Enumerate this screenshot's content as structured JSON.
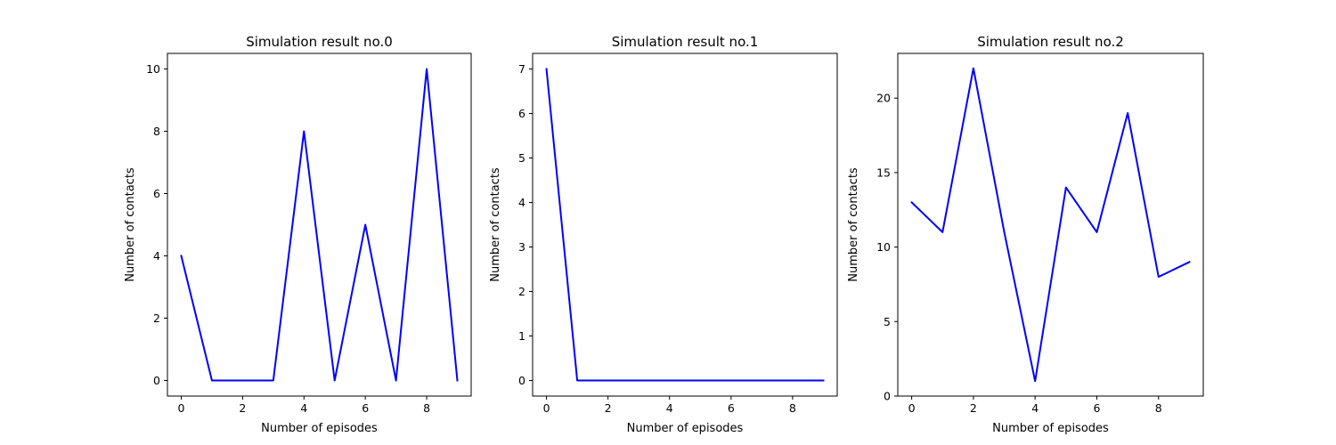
{
  "chart_data": [
    {
      "type": "line",
      "title": "Simulation result no.0",
      "xlabel": "Number of episodes",
      "ylabel": "Number of contacts",
      "x": [
        0,
        1,
        2,
        3,
        4,
        5,
        6,
        7,
        8,
        9
      ],
      "series": [
        {
          "values": [
            4,
            0,
            0,
            0,
            8,
            0,
            5,
            0,
            10,
            0
          ],
          "color": "#0000ff"
        }
      ],
      "xlim": [
        -0.45,
        9.45
      ],
      "ylim": [
        -0.5,
        10.5
      ],
      "xticks": [
        0,
        2,
        4,
        6,
        8
      ],
      "yticks": [
        0,
        2,
        4,
        6,
        8,
        10
      ],
      "grid": false
    },
    {
      "type": "line",
      "title": "Simulation result no.1",
      "xlabel": "Number of episodes",
      "ylabel": "Number of contacts",
      "x": [
        0,
        1,
        2,
        3,
        4,
        5,
        6,
        7,
        8,
        9
      ],
      "series": [
        {
          "values": [
            7,
            0,
            0,
            0,
            0,
            0,
            0,
            0,
            0,
            0
          ],
          "color": "#0000ff"
        }
      ],
      "xlim": [
        -0.45,
        9.45
      ],
      "ylim": [
        -0.35,
        7.35
      ],
      "xticks": [
        0,
        2,
        4,
        6,
        8
      ],
      "yticks": [
        0,
        1,
        2,
        3,
        4,
        5,
        6,
        7
      ],
      "grid": false
    },
    {
      "type": "line",
      "title": "Simulation result no.2",
      "xlabel": "Number of episodes",
      "ylabel": "Number of contacts",
      "x": [
        0,
        1,
        2,
        3,
        4,
        5,
        6,
        7,
        8,
        9
      ],
      "series": [
        {
          "values": [
            13,
            11,
            22,
            11,
            1,
            14,
            11,
            19,
            8,
            9
          ],
          "color": "#0000ff"
        }
      ],
      "xlim": [
        -0.45,
        9.45
      ],
      "ylim": [
        0,
        23
      ],
      "xticks": [
        0,
        2,
        4,
        6,
        8
      ],
      "yticks": [
        0,
        5,
        10,
        15,
        20
      ],
      "grid": false
    }
  ]
}
